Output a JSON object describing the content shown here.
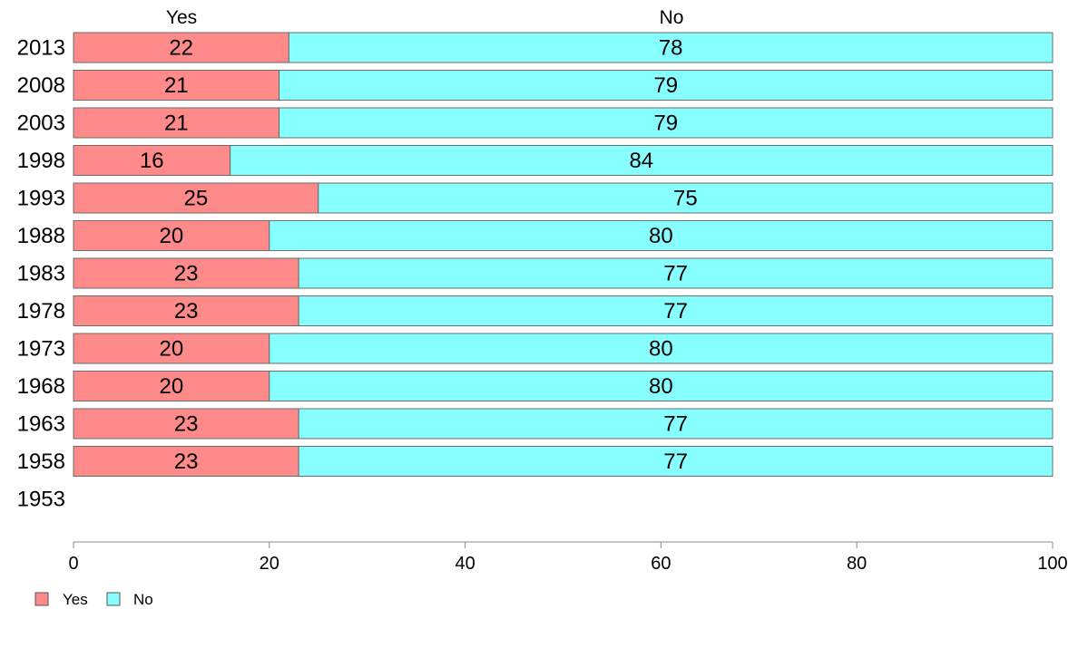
{
  "chart_data": {
    "type": "bar",
    "orientation": "horizontal",
    "stacked": true,
    "categories": [
      "2013",
      "2008",
      "2003",
      "1998",
      "1993",
      "1988",
      "1983",
      "1978",
      "1973",
      "1968",
      "1963",
      "1958",
      "1953"
    ],
    "series": [
      {
        "name": "Yes",
        "color": "#ff8a8a",
        "values": [
          22,
          21,
          21,
          16,
          25,
          20,
          23,
          23,
          20,
          20,
          23,
          23,
          null
        ],
        "labels": [
          "22",
          "21",
          "21",
          "16",
          "25",
          "20",
          "23",
          "23",
          "20",
          "20",
          "23",
          "23",
          ""
        ]
      },
      {
        "name": "No",
        "color": "#88ffff",
        "values": [
          78,
          79,
          79,
          84,
          75,
          80,
          77,
          77,
          80,
          80,
          77,
          77,
          null
        ],
        "labels": [
          "78",
          "79",
          "79",
          "84",
          "75",
          "80",
          "77",
          "77",
          "80",
          "80",
          "77",
          "77",
          ""
        ]
      }
    ],
    "column_headers": [
      "Yes",
      "No"
    ],
    "xlim": [
      0,
      100
    ],
    "xticks": [
      "0",
      "20",
      "40",
      "60",
      "80",
      "100"
    ],
    "grid": false,
    "legend": {
      "position": "bottom-left",
      "entries": [
        "Yes",
        "No"
      ]
    },
    "title": "",
    "xlabel": "",
    "ylabel": ""
  }
}
